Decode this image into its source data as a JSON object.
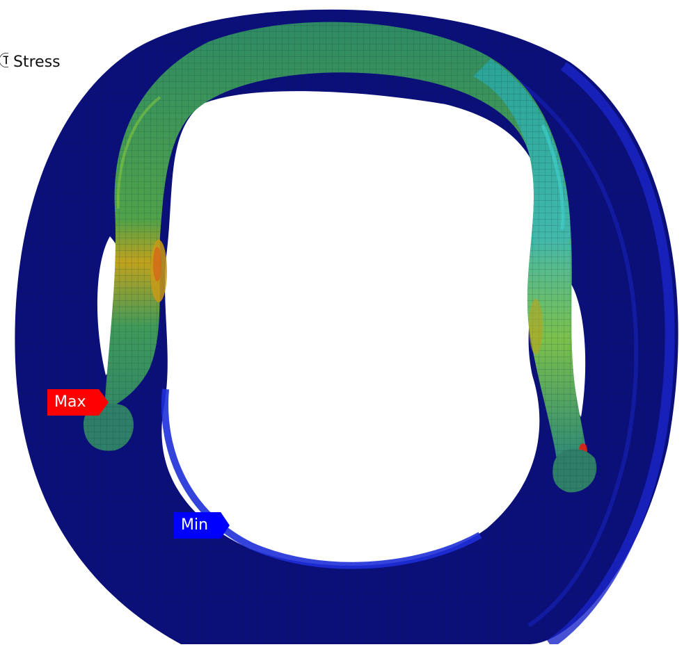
{
  "result": {
    "title": "Stress",
    "title_prefix": "Ⓣ"
  },
  "probes": {
    "max_label": "Max",
    "min_label": "Min"
  },
  "colors": {
    "background": "#ffffff",
    "min_blue": "#0a0f7a",
    "mid_green": "#2f8a5a",
    "high_yellow": "#c9d21a",
    "max_red": "#e31c0f",
    "mesh_line": "#0d1650",
    "max_probe": "#ff0000",
    "min_probe": "#0000ff"
  }
}
